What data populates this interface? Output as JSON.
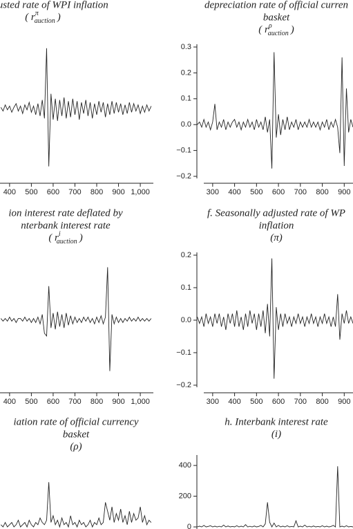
{
  "chart_data": [
    {
      "type": "line",
      "title_lines": [
        "e adjusted rate of WPI inflation"
      ],
      "subtitle": {
        "base": "( r",
        "sup": "π",
        "sub": "auction",
        "close": ")"
      },
      "x": [
        360,
        370,
        380,
        390,
        400,
        410,
        420,
        430,
        440,
        450,
        460,
        470,
        480,
        490,
        500,
        510,
        520,
        530,
        540,
        550,
        560,
        570,
        580,
        590,
        600,
        610,
        620,
        630,
        640,
        650,
        660,
        670,
        680,
        690,
        700,
        710,
        720,
        730,
        740,
        750,
        760,
        770,
        780,
        790,
        800,
        810,
        820,
        830,
        840,
        850,
        860,
        870,
        880,
        890,
        900,
        910,
        920,
        930,
        940,
        950,
        960,
        970,
        980,
        990,
        1000,
        1010,
        1020,
        1030,
        1040,
        1050
      ],
      "series": [
        {
          "color": "#222222",
          "values": [
            0.01,
            -0.02,
            0.03,
            -0.01,
            0.02,
            -0.03,
            0.01,
            0.04,
            -0.02,
            0.02,
            -0.04,
            0.03,
            -0.01,
            0.05,
            -0.03,
            0.02,
            -0.05,
            0.04,
            -0.06,
            0.07,
            -0.08,
            0.49,
            -0.47,
            0.12,
            -0.09,
            0.08,
            -0.1,
            0.07,
            -0.06,
            0.09,
            -0.08,
            0.06,
            -0.07,
            0.08,
            -0.05,
            0.06,
            -0.09,
            0.05,
            -0.04,
            0.07,
            -0.06,
            0.05,
            -0.08,
            0.04,
            -0.05,
            0.06,
            -0.03,
            0.05,
            -0.07,
            0.04,
            -0.05,
            0.06,
            -0.04,
            0.05,
            -0.03,
            0.04,
            -0.05,
            0.03,
            -0.04,
            0.05,
            -0.03,
            0.04,
            -0.02,
            0.03,
            -0.04,
            0.02,
            -0.03,
            0.03,
            -0.02,
            0.02
          ]
        }
      ],
      "xlim": [
        356,
        1060
      ],
      "ylim": [
        -0.5,
        0.5
      ],
      "xticks": [
        400,
        500,
        600,
        700,
        800,
        900,
        {
          "value": 1000,
          "label": "1,000"
        }
      ]
    },
    {
      "type": "line",
      "title_lines": [
        "depreciation rate of official curren",
        "basket"
      ],
      "subtitle": {
        "base": "( r",
        "sup": "ρ",
        "sub": "auction",
        "close": ")"
      },
      "x": [
        230,
        240,
        250,
        260,
        270,
        280,
        290,
        300,
        310,
        320,
        330,
        340,
        350,
        360,
        370,
        380,
        390,
        400,
        410,
        420,
        430,
        440,
        450,
        460,
        470,
        480,
        490,
        500,
        510,
        520,
        530,
        540,
        550,
        560,
        570,
        580,
        590,
        600,
        610,
        620,
        630,
        640,
        650,
        660,
        670,
        680,
        690,
        700,
        710,
        720,
        730,
        740,
        750,
        760,
        770,
        780,
        790,
        800,
        810,
        820,
        830,
        840,
        850,
        860,
        870,
        880,
        890,
        900,
        910,
        920,
        930,
        940
      ],
      "series": [
        {
          "color": "#222222",
          "values": [
            0,
            0.01,
            -0.01,
            0.02,
            -0.01,
            0.01,
            -0.02,
            0.01,
            0.08,
            -0.02,
            0.01,
            -0.01,
            0.02,
            -0.02,
            0.01,
            -0.01,
            0.01,
            0.02,
            -0.01,
            0.01,
            -0.02,
            0.01,
            -0.01,
            0.02,
            -0.01,
            0.01,
            -0.02,
            0.02,
            -0.01,
            0.01,
            -0.02,
            0.03,
            -0.03,
            0.02,
            -0.17,
            0.28,
            -0.05,
            0.04,
            -0.04,
            0.02,
            -0.02,
            0.03,
            -0.02,
            0.01,
            -0.01,
            0.02,
            -0.02,
            0.01,
            -0.01,
            0.01,
            -0.01,
            0.02,
            -0.01,
            0.01,
            -0.01,
            0.01,
            -0.02,
            0.01,
            -0.01,
            0.02,
            -0.02,
            0.01,
            -0.01,
            0.02,
            -0.01,
            -0.11,
            0.26,
            -0.16,
            0.14,
            -0.03,
            0.02,
            -0.01
          ]
        }
      ],
      "xlim": [
        228,
        940
      ],
      "ylim": [
        -0.2,
        0.3
      ],
      "xticks": [
        300,
        400,
        500,
        600,
        700,
        800,
        900
      ],
      "yticks": [
        {
          "value": 0.3,
          "label": "0.3"
        },
        {
          "value": 0.2,
          "label": "0.2"
        },
        {
          "value": 0.1,
          "label": "0.1"
        },
        {
          "value": 0,
          "label": "0.0"
        },
        {
          "value": -0.1,
          "label": "−0.1"
        },
        {
          "value": -0.2,
          "label": "−0.2"
        }
      ]
    },
    {
      "type": "line",
      "title_lines": [
        "ion interest rate deflated by",
        "nterbank interest rate"
      ],
      "subtitle": {
        "base": "( r",
        "sup": "i",
        "sub": "auction",
        "close": ")"
      },
      "x": [
        360,
        370,
        380,
        390,
        400,
        410,
        420,
        430,
        440,
        450,
        460,
        470,
        480,
        490,
        500,
        510,
        520,
        530,
        540,
        550,
        560,
        570,
        580,
        590,
        600,
        610,
        620,
        630,
        640,
        650,
        660,
        670,
        680,
        690,
        700,
        710,
        720,
        730,
        740,
        750,
        760,
        770,
        780,
        790,
        800,
        810,
        820,
        830,
        840,
        850,
        860,
        870,
        880,
        890,
        900,
        910,
        920,
        930,
        940,
        950,
        960,
        970,
        980,
        990,
        1000,
        1010,
        1020,
        1030,
        1040,
        1050
      ],
      "series": [
        {
          "color": "#222222",
          "values": [
            0.01,
            -0.01,
            0.01,
            -0.01,
            0.02,
            -0.01,
            0.01,
            -0.02,
            0.01,
            0.01,
            -0.01,
            0.02,
            -0.01,
            0.01,
            -0.02,
            0.01,
            -0.02,
            0.02,
            -0.03,
            0.04,
            -0.1,
            -0.12,
            0.25,
            -0.06,
            0.05,
            -0.07,
            0.06,
            -0.05,
            0.04,
            -0.06,
            0.05,
            -0.04,
            0.03,
            -0.03,
            0.02,
            -0.02,
            0.01,
            -0.02,
            0.02,
            -0.01,
            0.02,
            -0.02,
            0.01,
            -0.03,
            0.02,
            -0.02,
            0.03,
            -0.03,
            0.02,
            0.39,
            -0.38,
            0.04,
            -0.03,
            0.02,
            -0.02,
            0.01,
            -0.02,
            0.01,
            -0.01,
            0.02,
            -0.01,
            0.01,
            -0.01,
            0.02,
            -0.01,
            0.01,
            -0.01,
            0.01,
            -0.01,
            0.01
          ]
        }
      ],
      "xlim": [
        356,
        1060
      ],
      "ylim": [
        -0.5,
        0.5
      ],
      "xticks": [
        400,
        500,
        600,
        700,
        800,
        900,
        {
          "value": 1000,
          "label": "1,000"
        }
      ]
    },
    {
      "type": "line",
      "title_lines": [
        "f. Seasonally adjusted rate of WP",
        "inflation"
      ],
      "subtitle": {
        "base": "(π)"
      },
      "x": [
        230,
        240,
        250,
        260,
        270,
        280,
        290,
        300,
        310,
        320,
        330,
        340,
        350,
        360,
        370,
        380,
        390,
        400,
        410,
        420,
        430,
        440,
        450,
        460,
        470,
        480,
        490,
        500,
        510,
        520,
        530,
        540,
        550,
        560,
        570,
        580,
        590,
        600,
        610,
        620,
        630,
        640,
        650,
        660,
        670,
        680,
        690,
        700,
        710,
        720,
        730,
        740,
        750,
        760,
        770,
        780,
        790,
        800,
        810,
        820,
        830,
        840,
        850,
        860,
        870,
        880,
        890,
        900,
        910,
        920,
        930,
        940
      ],
      "series": [
        {
          "color": "#222222",
          "values": [
            0.01,
            -0.01,
            0.01,
            -0.02,
            0.02,
            -0.01,
            0.01,
            -0.02,
            0.02,
            -0.01,
            0.02,
            -0.02,
            0.01,
            -0.03,
            0.02,
            -0.01,
            0.02,
            -0.02,
            0.03,
            -0.02,
            0.01,
            -0.03,
            0.02,
            -0.02,
            0.03,
            -0.01,
            0.02,
            -0.03,
            0.02,
            -0.02,
            0.03,
            -0.04,
            0.05,
            -0.05,
            0.19,
            -0.18,
            0.04,
            -0.03,
            0.02,
            -0.02,
            0.02,
            -0.01,
            0.01,
            -0.02,
            0.01,
            -0.01,
            0.02,
            -0.01,
            0.01,
            -0.02,
            0.01,
            -0.01,
            0.02,
            -0.01,
            0.01,
            -0.02,
            0.01,
            -0.01,
            0.02,
            -0.01,
            0.01,
            -0.02,
            0.01,
            -0.02,
            0.08,
            -0.06,
            0.02,
            -0.01,
            0.03,
            -0.01,
            0.01,
            -0.01
          ]
        }
      ],
      "xlim": [
        228,
        940
      ],
      "ylim": [
        -0.2,
        0.2
      ],
      "xticks": [
        300,
        400,
        500,
        600,
        700,
        800,
        900
      ],
      "yticks": [
        {
          "value": 0.2,
          "label": "0.2"
        },
        {
          "value": 0.1,
          "label": "0.1"
        },
        {
          "value": 0,
          "label": "0.0"
        },
        {
          "value": -0.1,
          "label": "−0.1"
        },
        {
          "value": -0.2,
          "label": "−0.2"
        }
      ]
    },
    {
      "type": "line",
      "title_lines": [
        "iation rate of official currency",
        "basket"
      ],
      "subtitle": {
        "base": "(ρ)"
      },
      "x": [
        360,
        370,
        380,
        390,
        400,
        410,
        420,
        430,
        440,
        450,
        460,
        470,
        480,
        490,
        500,
        510,
        520,
        530,
        540,
        550,
        560,
        570,
        580,
        590,
        600,
        610,
        620,
        630,
        640,
        650,
        660,
        670,
        680,
        690,
        700,
        710,
        720,
        730,
        740,
        750,
        760,
        770,
        780,
        790,
        800,
        810,
        820,
        830,
        840,
        850,
        860,
        870,
        880,
        890,
        900,
        910,
        920,
        930,
        940,
        950,
        960,
        970,
        980,
        990,
        1000,
        1010,
        1020,
        1030,
        1040,
        1050
      ],
      "series": [
        {
          "color": "#222222",
          "values": [
            0.01,
            0,
            0.02,
            0,
            0.01,
            0.02,
            0,
            0.01,
            0.03,
            0,
            0.01,
            0.02,
            0,
            0.03,
            0.01,
            0,
            0.02,
            0.01,
            0.04,
            0.02,
            0.01,
            0.03,
            0.2,
            0.02,
            0.05,
            0.01,
            0.03,
            0,
            0.04,
            0.01,
            0.02,
            0,
            0.05,
            0.01,
            0.02,
            0,
            0.03,
            0.01,
            0.02,
            0,
            0.01,
            0.03,
            0,
            0.02,
            0.01,
            0.04,
            0.01,
            0.02,
            0.11,
            0.07,
            0.03,
            0.09,
            0.02,
            0.06,
            0.03,
            0.08,
            0.02,
            0.05,
            0.01,
            0.07,
            0.02,
            0.06,
            0.03,
            0.04,
            0.09,
            0.02,
            0.05,
            0.01,
            0.03,
            0.02
          ]
        }
      ],
      "xlim": [
        356,
        1060
      ],
      "ylim": [
        0,
        0.3
      ]
    },
    {
      "type": "line",
      "title_lines": [
        "h. Interbank interest rate"
      ],
      "subtitle": {
        "base": "(i)"
      },
      "x": [
        230,
        240,
        250,
        260,
        270,
        280,
        290,
        300,
        310,
        320,
        330,
        340,
        350,
        360,
        370,
        380,
        390,
        400,
        410,
        420,
        430,
        440,
        450,
        460,
        470,
        480,
        490,
        500,
        510,
        520,
        530,
        540,
        550,
        560,
        570,
        580,
        590,
        600,
        610,
        620,
        630,
        640,
        650,
        660,
        670,
        680,
        690,
        700,
        710,
        720,
        730,
        740,
        750,
        760,
        770,
        780,
        790,
        800,
        810,
        820,
        830,
        840,
        850,
        860,
        870,
        880,
        890,
        900,
        910,
        920,
        930,
        940
      ],
      "series": [
        {
          "color": "#222222",
          "values": [
            0,
            5,
            0,
            10,
            0,
            3,
            8,
            0,
            5,
            0,
            4,
            0,
            12,
            0,
            6,
            0,
            3,
            0,
            8,
            0,
            5,
            0,
            15,
            0,
            4,
            0,
            6,
            0,
            3,
            10,
            0,
            20,
            160,
            30,
            0,
            25,
            0,
            10,
            0,
            5,
            0,
            8,
            0,
            3,
            0,
            40,
            0,
            5,
            0,
            12,
            0,
            4,
            0,
            6,
            0,
            3,
            0,
            8,
            0,
            5,
            0,
            3,
            10,
            0,
            395,
            0,
            5,
            0,
            8,
            0,
            3,
            0
          ]
        }
      ],
      "xlim": [
        228,
        940
      ],
      "ylim": [
        0,
        450
      ],
      "yticks": [
        0,
        200,
        400
      ]
    }
  ]
}
